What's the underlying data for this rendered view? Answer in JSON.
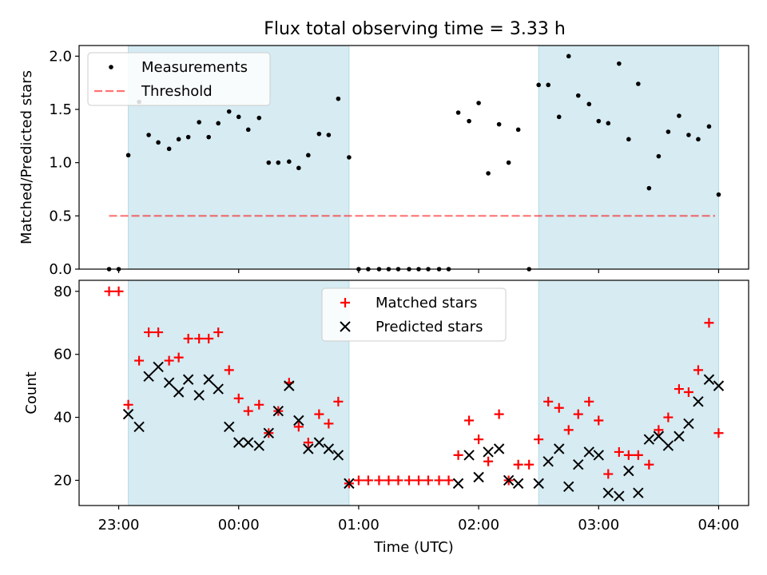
{
  "chart_data": [
    {
      "type": "scatter",
      "title": "Flux total observing time = 3.33 h",
      "xlabel": "",
      "ylabel": "Matched/Predicted stars",
      "ylim": [
        0,
        2.1
      ],
      "yticks": [
        "0.0",
        "0.5",
        "1.0",
        "1.5",
        "2.0"
      ],
      "xlim_hours": [
        -0.33,
        5.25
      ],
      "shaded_intervals_hours": [
        [
          0.08,
          1.92
        ],
        [
          3.5,
          5.0
        ]
      ],
      "legend": {
        "position": "upper-left",
        "entries": [
          "Measurements",
          "Threshold"
        ]
      },
      "threshold": {
        "name": "Threshold",
        "value": 0.5,
        "x_start": -0.08,
        "x_end": 4.97,
        "color": "#ff0000"
      },
      "series": [
        {
          "name": "Measurements",
          "color": "#000000",
          "x": [
            -0.08,
            0.0,
            0.08,
            0.17,
            0.25,
            0.33,
            0.42,
            0.5,
            0.58,
            0.67,
            0.75,
            0.83,
            0.92,
            1.0,
            1.08,
            1.17,
            1.25,
            1.33,
            1.42,
            1.5,
            1.58,
            1.67,
            1.75,
            1.83,
            1.92,
            2.0,
            2.08,
            2.17,
            2.25,
            2.33,
            2.42,
            2.5,
            2.58,
            2.67,
            2.75,
            2.83,
            2.92,
            3.0,
            3.08,
            3.17,
            3.25,
            3.33,
            3.42,
            3.5,
            3.58,
            3.67,
            3.75,
            3.83,
            3.92,
            4.0,
            4.08,
            4.17,
            4.25,
            4.33,
            4.42,
            4.5,
            4.58,
            4.67,
            4.75,
            4.83,
            4.92,
            5.0
          ],
          "y": [
            0.0,
            0.0,
            1.07,
            1.57,
            1.26,
            1.19,
            1.13,
            1.22,
            1.24,
            1.38,
            1.24,
            1.37,
            1.48,
            1.43,
            1.31,
            1.42,
            1.0,
            1.0,
            1.01,
            0.95,
            1.07,
            1.27,
            1.26,
            1.6,
            1.05,
            0.0,
            0.0,
            0.0,
            0.0,
            0.0,
            0.0,
            0.0,
            0.0,
            0.0,
            0.0,
            1.47,
            1.39,
            1.56,
            0.9,
            1.36,
            1.0,
            1.31,
            0.0,
            1.73,
            1.73,
            1.43,
            2.0,
            1.63,
            1.55,
            1.39,
            1.37,
            1.93,
            1.22,
            1.74,
            0.76,
            1.06,
            1.29,
            1.44,
            1.26,
            1.22,
            1.34,
            0.7
          ]
        }
      ]
    },
    {
      "type": "scatter",
      "title": "",
      "xlabel": "Time (UTC)",
      "ylabel": "Count",
      "ylim": [
        12,
        83.5
      ],
      "yticks": [
        "20",
        "40",
        "60",
        "80"
      ],
      "xlim_hours": [
        -0.33,
        5.25
      ],
      "xticks": [
        {
          "hour": 0,
          "label": "23:00"
        },
        {
          "hour": 1,
          "label": "00:00"
        },
        {
          "hour": 2,
          "label": "01:00"
        },
        {
          "hour": 3,
          "label": "02:00"
        },
        {
          "hour": 4,
          "label": "03:00"
        },
        {
          "hour": 5,
          "label": "04:00"
        }
      ],
      "shaded_intervals_hours": [
        [
          0.08,
          1.92
        ],
        [
          3.5,
          5.0
        ]
      ],
      "legend": {
        "position": "upper-center",
        "entries": [
          "Matched stars",
          "Predicted stars"
        ]
      },
      "series": [
        {
          "name": "Matched stars",
          "marker": "plus",
          "color": "#ff0000",
          "x": [
            -0.08,
            0.0,
            0.08,
            0.17,
            0.25,
            0.33,
            0.42,
            0.5,
            0.58,
            0.67,
            0.75,
            0.83,
            0.92,
            1.0,
            1.08,
            1.17,
            1.25,
            1.33,
            1.42,
            1.5,
            1.58,
            1.67,
            1.75,
            1.83,
            1.92,
            2.0,
            2.08,
            2.17,
            2.25,
            2.33,
            2.42,
            2.5,
            2.58,
            2.67,
            2.75,
            2.83,
            2.92,
            3.0,
            3.08,
            3.17,
            3.25,
            3.33,
            3.42,
            3.5,
            3.58,
            3.67,
            3.75,
            3.83,
            3.92,
            4.0,
            4.08,
            4.17,
            4.25,
            4.33,
            4.42,
            4.5,
            4.58,
            4.67,
            4.75,
            4.83,
            4.92,
            5.0
          ],
          "y": [
            80,
            80,
            44,
            58,
            67,
            67,
            58,
            59,
            65,
            65,
            65,
            67,
            55,
            46,
            42,
            44,
            35,
            42,
            51,
            37,
            32,
            41,
            38,
            45,
            19,
            20,
            20,
            20,
            20,
            20,
            20,
            20,
            20,
            20,
            20,
            28,
            39,
            33,
            26,
            41,
            20,
            25,
            25,
            33,
            45,
            43,
            36,
            41,
            45,
            39,
            22,
            29,
            28,
            28,
            25,
            36,
            40,
            49,
            48,
            55,
            70,
            35
          ]
        },
        {
          "name": "Predicted stars",
          "marker": "x",
          "color": "#000000",
          "x": [
            0.08,
            0.17,
            0.25,
            0.33,
            0.42,
            0.5,
            0.58,
            0.67,
            0.75,
            0.83,
            0.92,
            1.0,
            1.08,
            1.17,
            1.25,
            1.33,
            1.42,
            1.5,
            1.58,
            1.67,
            1.75,
            1.83,
            1.92,
            2.83,
            2.92,
            3.0,
            3.08,
            3.17,
            3.25,
            3.33,
            3.5,
            3.58,
            3.67,
            3.75,
            3.83,
            3.92,
            4.0,
            4.08,
            4.17,
            4.25,
            4.33,
            4.42,
            4.5,
            4.58,
            4.67,
            4.75,
            4.83,
            4.92,
            5.0
          ],
          "y": [
            41,
            37,
            53,
            56,
            51,
            48,
            52,
            47,
            52,
            49,
            37,
            32,
            32,
            31,
            35,
            42,
            50,
            39,
            30,
            32,
            30,
            28,
            19,
            19,
            28,
            21,
            29,
            30,
            20,
            19,
            19,
            26,
            30,
            18,
            25,
            29,
            28,
            16,
            15,
            23,
            16,
            33,
            34,
            31,
            34,
            38,
            45,
            52,
            50
          ]
        }
      ]
    }
  ]
}
